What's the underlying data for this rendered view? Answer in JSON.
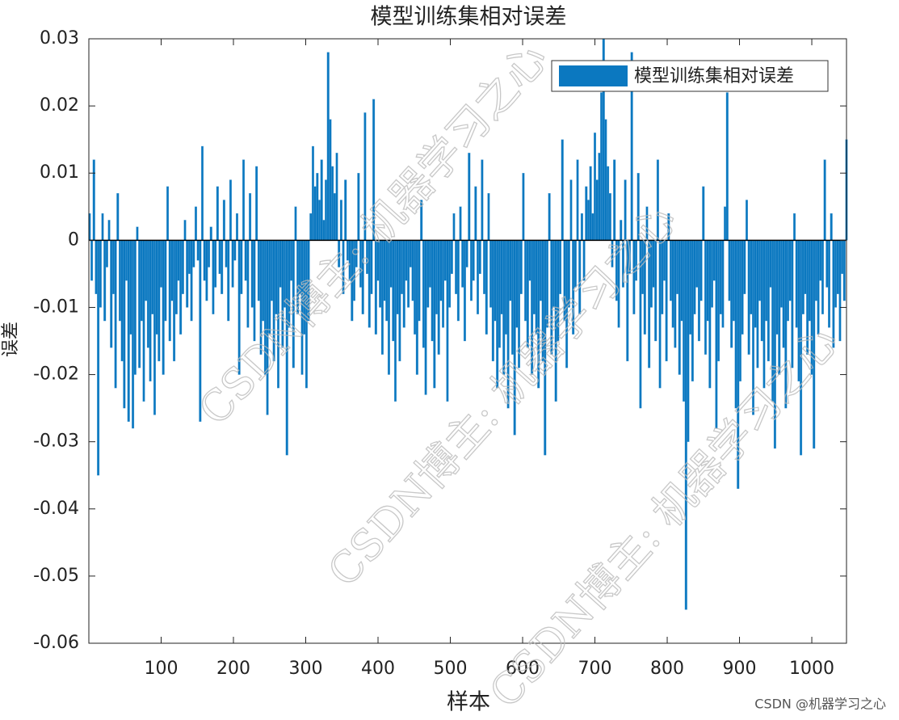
{
  "chart_data": {
    "type": "bar",
    "title": "模型训练集相对误差",
    "xlabel": "样本",
    "ylabel": "误差",
    "legend": "模型训练集相对误差",
    "legend_position": "upper right",
    "color": "#0b78c0",
    "watermark": "CSDN博主: 机器学习之心",
    "footer": "CSDN @机器学习之心",
    "xlim": [
      0,
      1048
    ],
    "xticks": [
      100,
      200,
      300,
      400,
      500,
      600,
      700,
      800,
      900,
      1000
    ],
    "ylim": [
      -0.06,
      0.03
    ],
    "yticks": [
      -0.06,
      -0.05,
      -0.04,
      -0.03,
      -0.02,
      -0.01,
      0,
      0.01,
      0.02,
      0.03
    ],
    "x": [
      1,
      4,
      7,
      10,
      13,
      16,
      19,
      22,
      25,
      28,
      31,
      34,
      37,
      40,
      43,
      46,
      49,
      52,
      55,
      58,
      61,
      64,
      67,
      70,
      73,
      76,
      79,
      82,
      85,
      88,
      91,
      94,
      97,
      100,
      103,
      106,
      109,
      112,
      115,
      118,
      121,
      124,
      127,
      130,
      133,
      136,
      139,
      142,
      145,
      148,
      151,
      154,
      157,
      160,
      163,
      166,
      169,
      172,
      175,
      178,
      181,
      184,
      187,
      190,
      193,
      196,
      199,
      202,
      205,
      208,
      211,
      214,
      217,
      220,
      223,
      226,
      229,
      232,
      235,
      238,
      241,
      244,
      247,
      250,
      253,
      256,
      259,
      262,
      265,
      268,
      271,
      274,
      277,
      280,
      283,
      286,
      289,
      292,
      295,
      298,
      301,
      304,
      307,
      310,
      313,
      316,
      319,
      322,
      325,
      328,
      331,
      334,
      337,
      340,
      343,
      346,
      349,
      352,
      355,
      358,
      361,
      364,
      367,
      370,
      373,
      376,
      379,
      382,
      385,
      388,
      391,
      394,
      397,
      400,
      403,
      406,
      409,
      412,
      415,
      418,
      421,
      424,
      427,
      430,
      433,
      436,
      439,
      442,
      445,
      448,
      451,
      454,
      457,
      460,
      463,
      466,
      469,
      472,
      475,
      478,
      481,
      484,
      487,
      490,
      493,
      496,
      499,
      502,
      505,
      508,
      511,
      514,
      517,
      520,
      523,
      526,
      529,
      532,
      535,
      538,
      541,
      544,
      547,
      550,
      553,
      556,
      559,
      562,
      565,
      568,
      571,
      574,
      577,
      580,
      583,
      586,
      589,
      592,
      595,
      598,
      601,
      604,
      607,
      610,
      613,
      616,
      619,
      622,
      625,
      628,
      631,
      634,
      637,
      640,
      643,
      646,
      649,
      652,
      655,
      658,
      661,
      664,
      667,
      670,
      673,
      676,
      679,
      682,
      685,
      688,
      691,
      694,
      697,
      700,
      703,
      706,
      709,
      712,
      715,
      718,
      721,
      724,
      727,
      730,
      733,
      736,
      739,
      742,
      745,
      748,
      751,
      754,
      757,
      760,
      763,
      766,
      769,
      772,
      775,
      778,
      781,
      784,
      787,
      790,
      793,
      796,
      799,
      802,
      805,
      808,
      811,
      814,
      817,
      820,
      823,
      826,
      829,
      832,
      835,
      838,
      841,
      844,
      847,
      850,
      853,
      856,
      859,
      862,
      865,
      868,
      871,
      874,
      877,
      880,
      883,
      886,
      889,
      892,
      895,
      898,
      901,
      904,
      907,
      910,
      913,
      916,
      919,
      922,
      925,
      928,
      931,
      934,
      937,
      940,
      943,
      946,
      949,
      952,
      955,
      958,
      961,
      964,
      967,
      970,
      973,
      976,
      979,
      982,
      985,
      988,
      991,
      994,
      997,
      1000,
      1003,
      1006,
      1009,
      1012,
      1015,
      1018,
      1021,
      1024,
      1027,
      1030,
      1033,
      1036,
      1039,
      1042,
      1045,
      1048
    ],
    "values": [
      0.004,
      -0.006,
      0.012,
      -0.008,
      -0.035,
      -0.01,
      0.004,
      -0.012,
      -0.004,
      0.003,
      -0.016,
      -0.008,
      -0.022,
      0.007,
      -0.012,
      -0.018,
      -0.025,
      -0.006,
      -0.027,
      -0.014,
      -0.028,
      -0.02,
      0.002,
      -0.019,
      -0.012,
      -0.024,
      -0.009,
      -0.016,
      -0.021,
      -0.011,
      -0.026,
      -0.014,
      -0.018,
      -0.007,
      -0.02,
      -0.012,
      0.008,
      -0.015,
      -0.009,
      -0.018,
      -0.011,
      -0.006,
      -0.014,
      -0.008,
      0.003,
      -0.01,
      -0.005,
      -0.012,
      -0.004,
      0.005,
      -0.003,
      -0.027,
      0.014,
      -0.006,
      -0.009,
      -0.004,
      0.002,
      -0.011,
      -0.007,
      0.008,
      -0.005,
      -0.008,
      0.006,
      -0.004,
      -0.012,
      0.009,
      -0.007,
      -0.003,
      0.004,
      -0.02,
      -0.008,
      0.012,
      -0.006,
      -0.013,
      0.007,
      -0.01,
      -0.015,
      0.011,
      -0.009,
      -0.017,
      -0.012,
      -0.02,
      -0.026,
      -0.014,
      -0.009,
      -0.018,
      -0.011,
      -0.022,
      -0.007,
      -0.016,
      -0.01,
      -0.032,
      -0.013,
      -0.006,
      -0.019,
      0.005,
      -0.011,
      -0.008,
      -0.02,
      -0.014,
      -0.022,
      -0.012,
      0.004,
      0.014,
      0.008,
      0.01,
      0.006,
      0.012,
      0.003,
      0.009,
      0.028,
      0.018,
      0.011,
      0.007,
      0.013,
      -0.004,
      0.006,
      -0.008,
      0.009,
      -0.003,
      -0.006,
      -0.012,
      -0.009,
      -0.004,
      0.01,
      -0.007,
      -0.011,
      0.019,
      -0.005,
      -0.013,
      -0.008,
      0.021,
      -0.014,
      -0.006,
      -0.01,
      -0.017,
      -0.009,
      -0.012,
      -0.02,
      -0.007,
      -0.015,
      -0.024,
      -0.011,
      -0.018,
      -0.008,
      -0.013,
      -0.006,
      -0.01,
      -0.004,
      -0.009,
      -0.014,
      -0.02,
      -0.012,
      0.006,
      -0.016,
      -0.023,
      -0.01,
      -0.007,
      -0.015,
      -0.022,
      -0.011,
      -0.017,
      -0.009,
      -0.013,
      -0.006,
      -0.024,
      -0.01,
      -0.005,
      0.004,
      -0.008,
      -0.012,
      0.005,
      -0.007,
      -0.015,
      -0.004,
      0.013,
      -0.009,
      -0.006,
      0.008,
      -0.011,
      -0.005,
      0.012,
      -0.008,
      -0.014,
      0.007,
      -0.01,
      -0.018,
      -0.012,
      -0.022,
      -0.016,
      -0.011,
      -0.02,
      -0.014,
      -0.025,
      -0.009,
      -0.017,
      -0.029,
      -0.013,
      -0.019,
      -0.008,
      0.01,
      -0.012,
      -0.016,
      -0.006,
      -0.02,
      -0.011,
      -0.014,
      -0.022,
      -0.009,
      -0.018,
      -0.032,
      -0.013,
      0.007,
      -0.017,
      -0.01,
      -0.024,
      -0.015,
      -0.008,
      0.015,
      -0.012,
      -0.019,
      -0.01,
      0.009,
      -0.014,
      -0.007,
      0.012,
      -0.011,
      0.004,
      -0.006,
      0.008,
      0.006,
      0.011,
      0.004,
      0.016,
      0.009,
      0.013,
      0.022,
      0.03,
      0.018,
      0.011,
      0.007,
      -0.004,
      0.012,
      -0.009,
      -0.013,
      0.003,
      -0.007,
      0.009,
      -0.018,
      -0.005,
      0.028,
      -0.011,
      -0.006,
      0.01,
      -0.025,
      -0.008,
      -0.014,
      0.005,
      -0.019,
      -0.01,
      -0.007,
      -0.015,
      0.012,
      -0.022,
      -0.011,
      -0.006,
      -0.018,
      0.004,
      -0.009,
      -0.013,
      -0.016,
      -0.008,
      -0.02,
      -0.012,
      -0.024,
      -0.055,
      -0.03,
      -0.014,
      -0.021,
      -0.011,
      -0.007,
      -0.015,
      -0.009,
      0.008,
      -0.017,
      -0.012,
      -0.022,
      -0.01,
      -0.006,
      -0.028,
      -0.018,
      -0.011,
      -0.013,
      0.005,
      0.022,
      -0.009,
      -0.016,
      -0.012,
      -0.025,
      -0.037,
      -0.021,
      -0.014,
      -0.008,
      0.006,
      -0.017,
      -0.011,
      -0.026,
      -0.013,
      -0.019,
      -0.009,
      -0.015,
      -0.022,
      -0.012,
      -0.018,
      -0.007,
      -0.024,
      -0.031,
      -0.014,
      -0.02,
      -0.01,
      -0.016,
      -0.025,
      -0.012,
      -0.009,
      -0.019,
      0.004,
      -0.013,
      -0.021,
      -0.032,
      -0.011,
      -0.008,
      -0.017,
      -0.012,
      -0.02,
      -0.031,
      -0.009,
      -0.014,
      -0.006,
      -0.011,
      0.012,
      -0.007,
      -0.013,
      0.004,
      -0.016,
      -0.01,
      -0.008,
      -0.015,
      -0.005,
      -0.009,
      0.015
    ]
  }
}
